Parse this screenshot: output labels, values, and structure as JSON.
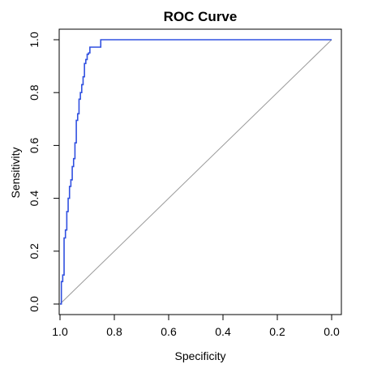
{
  "chart_data": {
    "type": "line",
    "title": "ROC Curve",
    "xlabel": "Specificity",
    "ylabel": "Sensitivity",
    "xlim": [
      1.0,
      0.0
    ],
    "ylim": [
      0.0,
      1.0
    ],
    "x_reversed": true,
    "grid": false,
    "legend": "none",
    "x_ticks": [
      "1.0",
      "0.8",
      "0.6",
      "0.4",
      "0.2",
      "0.0"
    ],
    "x_tick_values": [
      1.0,
      0.8,
      0.6,
      0.4,
      0.2,
      0.0
    ],
    "y_ticks": [
      "0.0",
      "0.2",
      "0.4",
      "0.6",
      "0.8",
      "1.0"
    ],
    "y_tick_values": [
      0.0,
      0.2,
      0.4,
      0.6,
      0.8,
      1.0
    ],
    "series": [
      {
        "color": "#3050e0",
        "specificity": [
          1.0,
          0.995,
          0.995,
          0.99,
          0.99,
          0.985,
          0.985,
          0.98,
          0.98,
          0.975,
          0.975,
          0.97,
          0.97,
          0.965,
          0.965,
          0.96,
          0.96,
          0.955,
          0.955,
          0.95,
          0.95,
          0.945,
          0.945,
          0.94,
          0.94,
          0.935,
          0.935,
          0.93,
          0.93,
          0.925,
          0.925,
          0.92,
          0.92,
          0.915,
          0.915,
          0.91,
          0.91,
          0.905,
          0.905,
          0.9,
          0.9,
          0.895,
          0.895,
          0.89,
          0.89,
          0.85,
          0.85,
          0.8,
          0.8,
          0.0
        ],
        "sensitivity": [
          0.0,
          0.0,
          0.085,
          0.085,
          0.11,
          0.11,
          0.25,
          0.25,
          0.28,
          0.28,
          0.35,
          0.35,
          0.4,
          0.4,
          0.445,
          0.445,
          0.47,
          0.47,
          0.52,
          0.52,
          0.55,
          0.55,
          0.61,
          0.61,
          0.695,
          0.695,
          0.72,
          0.72,
          0.775,
          0.775,
          0.8,
          0.8,
          0.83,
          0.83,
          0.86,
          0.86,
          0.91,
          0.91,
          0.925,
          0.925,
          0.945,
          0.945,
          0.95,
          0.95,
          0.972,
          0.972,
          1.0,
          1.0,
          1.0,
          1.0
        ]
      }
    ],
    "reference_line": {
      "from": [
        1.0,
        0.0
      ],
      "to": [
        0.0,
        1.0
      ],
      "color": "#999999"
    }
  }
}
